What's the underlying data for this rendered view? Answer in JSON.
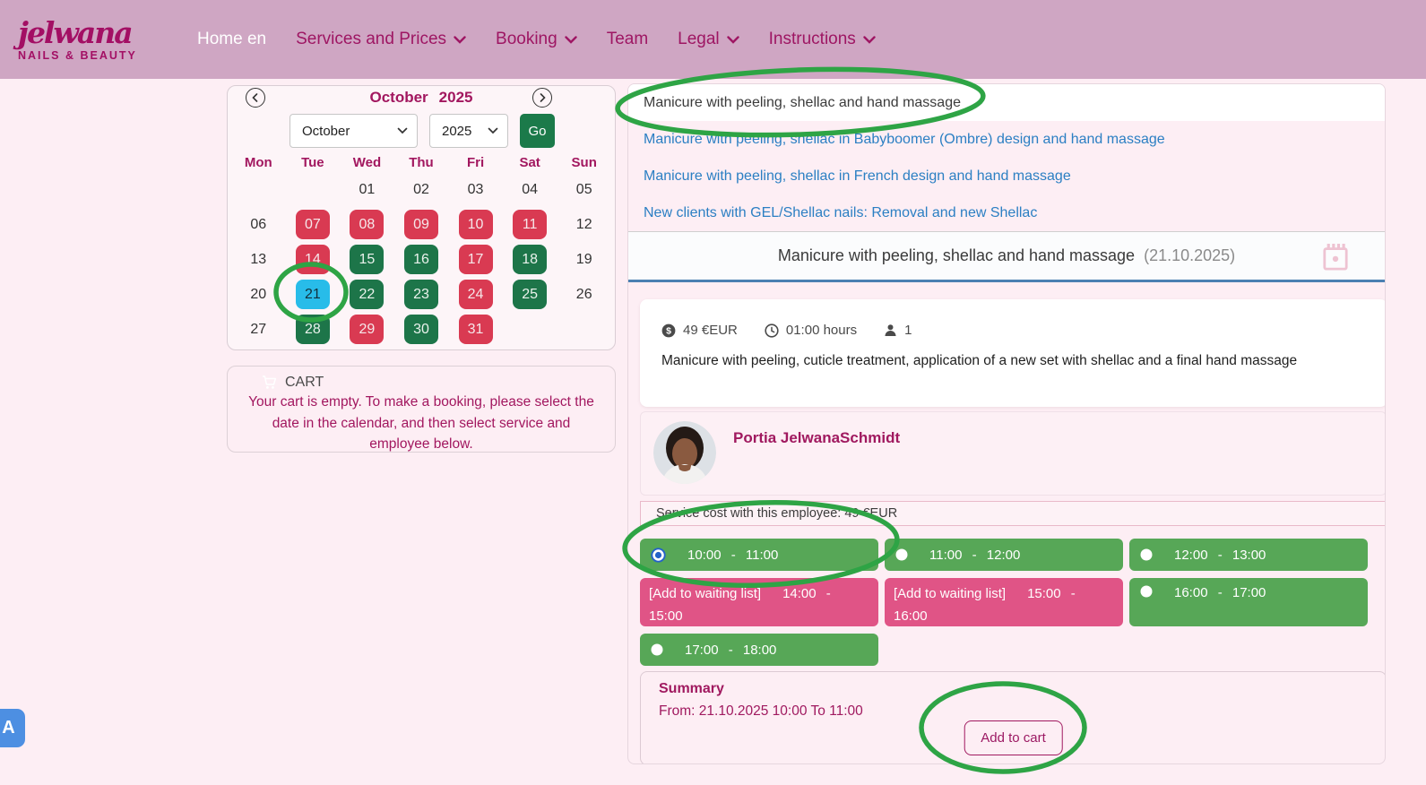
{
  "brand": {
    "name": "jelwana",
    "tagline": "NAILS & BEAUTY"
  },
  "nav": {
    "items": [
      {
        "label": "Home en",
        "active": true,
        "caret": false
      },
      {
        "label": "Services and Prices",
        "active": false,
        "caret": true
      },
      {
        "label": "Booking",
        "active": false,
        "caret": true
      },
      {
        "label": "Team",
        "active": false,
        "caret": false
      },
      {
        "label": "Legal",
        "active": false,
        "caret": true
      },
      {
        "label": "Instructions",
        "active": false,
        "caret": true
      }
    ]
  },
  "calendar": {
    "title_month": "October",
    "title_year": "2025",
    "month_select_value": "October",
    "year_select_value": "2025",
    "go_label": "Go",
    "weekdays": [
      "Mon",
      "Tue",
      "Wed",
      "Thu",
      "Fri",
      "Sat",
      "Sun"
    ],
    "weeks": [
      [
        {
          "d": "",
          "state": "empty"
        },
        {
          "d": "",
          "state": "empty"
        },
        {
          "d": "01",
          "state": "plain"
        },
        {
          "d": "02",
          "state": "plain"
        },
        {
          "d": "03",
          "state": "plain"
        },
        {
          "d": "04",
          "state": "plain"
        },
        {
          "d": "05",
          "state": "plain"
        }
      ],
      [
        {
          "d": "06",
          "state": "plain"
        },
        {
          "d": "07",
          "state": "booked"
        },
        {
          "d": "08",
          "state": "booked"
        },
        {
          "d": "09",
          "state": "booked"
        },
        {
          "d": "10",
          "state": "booked"
        },
        {
          "d": "11",
          "state": "booked"
        },
        {
          "d": "12",
          "state": "plain"
        }
      ],
      [
        {
          "d": "13",
          "state": "plain"
        },
        {
          "d": "14",
          "state": "booked"
        },
        {
          "d": "15",
          "state": "available"
        },
        {
          "d": "16",
          "state": "available"
        },
        {
          "d": "17",
          "state": "booked"
        },
        {
          "d": "18",
          "state": "available"
        },
        {
          "d": "19",
          "state": "plain"
        }
      ],
      [
        {
          "d": "20",
          "state": "plain"
        },
        {
          "d": "21",
          "state": "selected"
        },
        {
          "d": "22",
          "state": "available"
        },
        {
          "d": "23",
          "state": "available"
        },
        {
          "d": "24",
          "state": "booked"
        },
        {
          "d": "25",
          "state": "available"
        },
        {
          "d": "26",
          "state": "plain"
        }
      ],
      [
        {
          "d": "27",
          "state": "plain"
        },
        {
          "d": "28",
          "state": "available"
        },
        {
          "d": "29",
          "state": "booked"
        },
        {
          "d": "30",
          "state": "available"
        },
        {
          "d": "31",
          "state": "booked"
        },
        {
          "d": "",
          "state": "empty"
        },
        {
          "d": "",
          "state": "empty"
        }
      ]
    ]
  },
  "cart": {
    "title": "CART",
    "message": "Your cart is empty. To make a booking, please select the date in the calendar, and then select service and employee below."
  },
  "services": {
    "selected": "Manicure with peeling, shellac and hand massage",
    "links": [
      "Manicure with peeling, shellac in Babyboomer (Ombre) design and hand massage",
      "Manicure with peeling, shellac in French design and hand massage",
      "New clients with GEL/Shellac nails: Removal and new Shellac"
    ]
  },
  "detail": {
    "title": "Manicure with peeling, shellac and hand massage",
    "date": "(21.10.2025)",
    "price": "49 €EUR",
    "duration": "01:00 hours",
    "capacity": "1",
    "description": "Manicure with peeling, cuticle treatment, application of a new set with shellac and a final hand massage"
  },
  "employee": {
    "name": "Portia JelwanaSchmidt",
    "cost_note": "Service cost with this employee: 49 €EUR"
  },
  "slots": {
    "rows": [
      [
        {
          "type": "free",
          "time": "10:00 - 11:00",
          "selected": true
        },
        {
          "type": "free",
          "time": "11:00 - 12:00",
          "selected": false
        },
        {
          "type": "free",
          "time": "12:00 - 13:00",
          "selected": false
        }
      ],
      [
        {
          "type": "waiting",
          "label": "[Add to waiting list]",
          "time": "14:00 - 15:00"
        },
        {
          "type": "waiting",
          "label": "[Add to waiting list]",
          "time": "15:00 - 16:00"
        },
        {
          "type": "free",
          "time": "16:00 - 17:00",
          "selected": false
        }
      ],
      [
        {
          "type": "free",
          "time": "17:00 - 18:00",
          "selected": false
        }
      ]
    ]
  },
  "summary": {
    "title": "Summary",
    "range": "From: 21.10.2025 10:00 To 11:00",
    "add_to_cart": "Add to cart"
  },
  "colors": {
    "topbar": "#cfa6c3",
    "brand_magenta": "#a30f64",
    "page_bg": "#fdeef4",
    "booked_red": "#d93a52",
    "available_green": "#1d7549",
    "selected_cyan": "#28bce9",
    "slot_green": "#57a757",
    "slot_pink": "#e05486",
    "link_blue": "#2b7fc3",
    "annotation_green": "#2ea445",
    "header_underline": "#4b80b2"
  }
}
